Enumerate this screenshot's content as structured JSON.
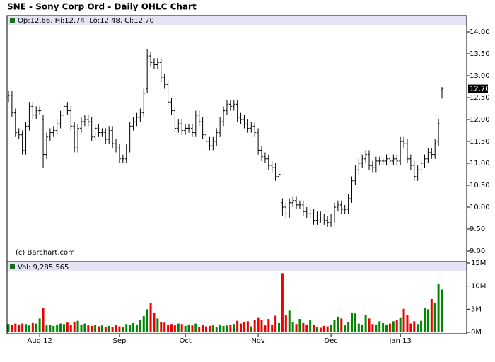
{
  "chart_data": {
    "type": "ohlc",
    "title": "SNE - Sony Corp Ord - Daily OHLC Chart",
    "header": "Op:12.66, Hi:12.74, Lo:12.48, Cl:12.70",
    "volume_header": "Vol: 9,285,565",
    "credit": "(c) Barchart.com",
    "close_label": "12.70",
    "bar_color": "#000000",
    "up_color": "#008800",
    "down_color": "#ee0000",
    "categories": [
      null,
      null,
      null,
      null,
      null,
      null,
      null,
      null,
      null,
      "Aug 12",
      null,
      null,
      null,
      null,
      null,
      null,
      null,
      null,
      null,
      null,
      null,
      null,
      null,
      null,
      null,
      null,
      null,
      null,
      null,
      null,
      null,
      null,
      "Sep",
      null,
      null,
      null,
      null,
      null,
      null,
      null,
      null,
      null,
      null,
      null,
      null,
      null,
      null,
      null,
      null,
      null,
      null,
      "Oct",
      null,
      null,
      null,
      null,
      null,
      null,
      null,
      null,
      null,
      null,
      null,
      null,
      null,
      null,
      null,
      null,
      null,
      null,
      null,
      null,
      "Nov",
      null,
      null,
      null,
      null,
      null,
      null,
      null,
      null,
      null,
      null,
      null,
      null,
      null,
      null,
      null,
      null,
      null,
      null,
      null,
      null,
      "Dec",
      null,
      null,
      null,
      null,
      null,
      null,
      null,
      null,
      null,
      null,
      null,
      null,
      null,
      null,
      null,
      null,
      null,
      null,
      null,
      "Jan 13",
      null,
      null,
      null,
      null,
      null,
      null,
      null,
      null,
      null,
      null,
      null,
      null
    ],
    "open": [
      12.5,
      12.55,
      12.15,
      11.7,
      11.65,
      11.3,
      11.85,
      12.3,
      12.1,
      12.2,
      12.0,
      11.2,
      11.6,
      11.7,
      11.75,
      11.9,
      12.1,
      12.3,
      12.2,
      11.85,
      11.35,
      11.8,
      11.95,
      12.0,
      11.95,
      11.6,
      11.8,
      11.7,
      11.7,
      11.55,
      11.75,
      11.45,
      11.35,
      11.1,
      11.1,
      11.35,
      11.85,
      11.95,
      12.05,
      12.15,
      12.7,
      13.45,
      13.3,
      13.25,
      13.3,
      12.95,
      12.8,
      12.4,
      12.2,
      11.8,
      11.9,
      11.75,
      11.8,
      11.8,
      11.7,
      12.1,
      11.95,
      11.65,
      11.5,
      11.4,
      11.5,
      11.7,
      11.95,
      12.2,
      12.35,
      12.3,
      12.35,
      12.05,
      12.0,
      11.9,
      11.8,
      11.85,
      11.7,
      11.3,
      11.15,
      11.1,
      10.95,
      10.9,
      10.7,
      10.1,
      10.0,
      9.85,
      10.1,
      10.15,
      10.05,
      10.05,
      9.9,
      9.85,
      9.85,
      9.7,
      9.8,
      9.75,
      9.7,
      9.65,
      9.75,
      10.0,
      10.05,
      9.95,
      9.95,
      10.2,
      10.6,
      10.85,
      11.0,
      11.1,
      11.2,
      10.95,
      10.9,
      11.05,
      11.05,
      11.05,
      11.1,
      11.05,
      11.1,
      11.05,
      11.5,
      11.45,
      11.1,
      10.95,
      10.7,
      10.85,
      11.0,
      11.1,
      11.25,
      11.2,
      11.5,
      12.66
    ],
    "high": [
      12.65,
      12.65,
      12.25,
      11.8,
      11.75,
      11.95,
      12.4,
      12.4,
      12.3,
      12.3,
      12.1,
      11.7,
      11.8,
      11.85,
      12.0,
      12.2,
      12.4,
      12.4,
      12.3,
      11.95,
      11.9,
      12.05,
      12.1,
      12.1,
      12.05,
      11.9,
      11.9,
      11.8,
      11.8,
      11.85,
      11.85,
      11.55,
      11.45,
      11.2,
      11.45,
      11.95,
      12.05,
      12.15,
      12.25,
      12.7,
      13.6,
      13.55,
      13.4,
      13.4,
      13.4,
      13.05,
      12.9,
      12.5,
      12.3,
      12.0,
      12.0,
      11.9,
      11.9,
      11.9,
      12.2,
      12.2,
      12.05,
      11.75,
      11.6,
      11.6,
      11.8,
      12.05,
      12.3,
      12.45,
      12.45,
      12.45,
      12.45,
      12.15,
      12.1,
      12.0,
      11.95,
      11.95,
      11.8,
      11.4,
      11.25,
      11.2,
      11.05,
      11.0,
      10.85,
      10.2,
      10.1,
      10.2,
      10.25,
      10.25,
      10.15,
      10.15,
      10.0,
      9.95,
      9.95,
      9.9,
      9.9,
      9.85,
      9.8,
      9.85,
      10.1,
      10.15,
      10.15,
      10.05,
      10.3,
      10.7,
      10.95,
      11.1,
      11.2,
      11.3,
      11.3,
      11.05,
      11.15,
      11.15,
      11.15,
      11.2,
      11.2,
      11.2,
      11.2,
      11.6,
      11.6,
      11.55,
      11.2,
      11.05,
      10.95,
      11.1,
      11.2,
      11.35,
      11.35,
      11.55,
      12.0,
      12.74
    ],
    "low": [
      12.4,
      12.05,
      11.6,
      11.55,
      11.2,
      11.2,
      11.75,
      12.0,
      12.0,
      12.1,
      10.9,
      11.1,
      11.5,
      11.6,
      11.65,
      11.8,
      12.0,
      12.1,
      11.75,
      11.25,
      11.25,
      11.7,
      11.85,
      11.85,
      11.5,
      11.5,
      11.6,
      11.6,
      11.45,
      11.45,
      11.35,
      11.25,
      11.0,
      11.0,
      11.0,
      11.25,
      11.75,
      11.85,
      11.95,
      12.05,
      12.6,
      13.2,
      13.15,
      13.15,
      12.85,
      12.7,
      12.3,
      12.1,
      11.7,
      11.7,
      11.65,
      11.65,
      11.7,
      11.6,
      11.6,
      11.85,
      11.55,
      11.4,
      11.3,
      11.3,
      11.4,
      11.6,
      11.85,
      12.1,
      12.2,
      12.2,
      11.95,
      11.9,
      11.8,
      11.7,
      11.7,
      11.6,
      11.2,
      11.05,
      11.0,
      10.85,
      10.8,
      10.6,
      10.6,
      9.8,
      9.75,
      9.75,
      10.0,
      9.95,
      9.95,
      9.8,
      9.75,
      9.75,
      9.6,
      9.6,
      9.65,
      9.6,
      9.55,
      9.55,
      9.65,
      9.9,
      9.85,
      9.85,
      9.85,
      10.1,
      10.5,
      10.75,
      10.9,
      11.0,
      10.85,
      10.8,
      10.8,
      10.95,
      10.95,
      10.95,
      10.95,
      10.95,
      10.95,
      10.95,
      11.35,
      11.0,
      10.85,
      10.6,
      10.6,
      10.75,
      10.9,
      11.0,
      11.1,
      11.1,
      11.4,
      12.48
    ],
    "close": [
      12.55,
      12.15,
      11.7,
      11.65,
      11.3,
      11.85,
      12.3,
      12.1,
      12.2,
      12.2,
      11.2,
      11.6,
      11.7,
      11.75,
      11.9,
      12.1,
      12.3,
      12.2,
      11.85,
      11.35,
      11.8,
      11.95,
      12.0,
      11.95,
      11.6,
      11.8,
      11.7,
      11.7,
      11.55,
      11.75,
      11.45,
      11.35,
      11.1,
      11.1,
      11.35,
      11.85,
      11.95,
      12.05,
      12.15,
      12.6,
      13.45,
      13.3,
      13.25,
      13.3,
      12.95,
      12.8,
      12.4,
      12.2,
      11.8,
      11.9,
      11.75,
      11.8,
      11.8,
      11.7,
      12.1,
      11.95,
      11.65,
      11.5,
      11.4,
      11.5,
      11.7,
      11.95,
      12.2,
      12.35,
      12.3,
      12.35,
      12.05,
      12.0,
      11.9,
      11.8,
      11.85,
      11.7,
      11.3,
      11.15,
      11.1,
      10.95,
      10.9,
      10.7,
      10.75,
      10.0,
      9.85,
      10.1,
      10.15,
      10.05,
      10.05,
      9.9,
      9.85,
      9.85,
      9.7,
      9.8,
      9.75,
      9.7,
      9.65,
      9.75,
      10.0,
      10.05,
      9.95,
      9.95,
      10.2,
      10.6,
      10.85,
      11.0,
      11.1,
      11.2,
      10.95,
      10.9,
      11.05,
      11.05,
      11.05,
      11.1,
      11.05,
      11.1,
      11.05,
      11.5,
      11.45,
      11.1,
      10.95,
      10.7,
      10.85,
      11.0,
      11.1,
      11.25,
      11.2,
      11.45,
      11.9,
      12.7
    ],
    "volume": [
      1.8,
      1.6,
      1.9,
      1.7,
      1.9,
      1.8,
      1.5,
      2.0,
      1.9,
      3.0,
      5.3,
      1.5,
      1.6,
      1.4,
      1.7,
      1.9,
      1.8,
      2.1,
      1.6,
      2.3,
      2.5,
      1.7,
      1.9,
      1.5,
      1.4,
      1.6,
      1.3,
      1.5,
      1.2,
      1.4,
      1.1,
      1.6,
      1.3,
      1.2,
      1.8,
      1.6,
      2.0,
      1.7,
      2.6,
      3.5,
      5.0,
      6.4,
      4.2,
      3.0,
      2.2,
      2.1,
      1.6,
      1.8,
      1.5,
      1.9,
      1.8,
      1.4,
      1.7,
      1.5,
      1.9,
      1.2,
      1.6,
      1.3,
      1.4,
      1.5,
      1.2,
      1.7,
      1.4,
      1.5,
      1.6,
      1.8,
      2.5,
      1.9,
      2.2,
      2.4,
      1.3,
      2.7,
      3.1,
      2.6,
      1.5,
      2.9,
      1.7,
      3.6,
      2.0,
      12.8,
      3.8,
      4.7,
      2.3,
      1.8,
      2.9,
      2.0,
      1.7,
      2.6,
      1.6,
      1.1,
      1.0,
      1.4,
      1.3,
      1.7,
      2.7,
      3.4,
      3.0,
      1.5,
      2.3,
      4.3,
      4.1,
      1.9,
      1.6,
      3.8,
      3.0,
      1.8,
      1.6,
      2.4,
      2.0,
      1.7,
      1.9,
      2.4,
      2.6,
      3.1,
      5.1,
      3.7,
      1.9,
      2.4,
      1.8,
      2.5,
      5.3,
      5.0,
      7.2,
      6.3,
      10.5,
      9.285565
    ],
    "ylim": [
      9,
      14
    ],
    "yticks": [
      {
        "value": 9,
        "label": "9.00"
      },
      {
        "value": 9.5,
        "label": "9.50"
      },
      {
        "value": 10,
        "label": "10.00"
      },
      {
        "value": 10.5,
        "label": "10.50"
      },
      {
        "value": 11,
        "label": "11.00"
      },
      {
        "value": 11.5,
        "label": "11.50"
      },
      {
        "value": 12,
        "label": "12.00"
      },
      {
        "value": 12.5,
        "label": "12.50"
      },
      {
        "value": 13,
        "label": "13.00"
      },
      {
        "value": 13.5,
        "label": "13.50"
      },
      {
        "value": 14,
        "label": "14.00"
      }
    ],
    "y2lim": [
      0,
      15
    ],
    "y2ticks": [
      {
        "value": 0,
        "label": "0M"
      },
      {
        "value": 5,
        "label": "5M"
      },
      {
        "value": 10,
        "label": "10M"
      },
      {
        "value": 15,
        "label": "15M"
      }
    ],
    "grid": false
  }
}
